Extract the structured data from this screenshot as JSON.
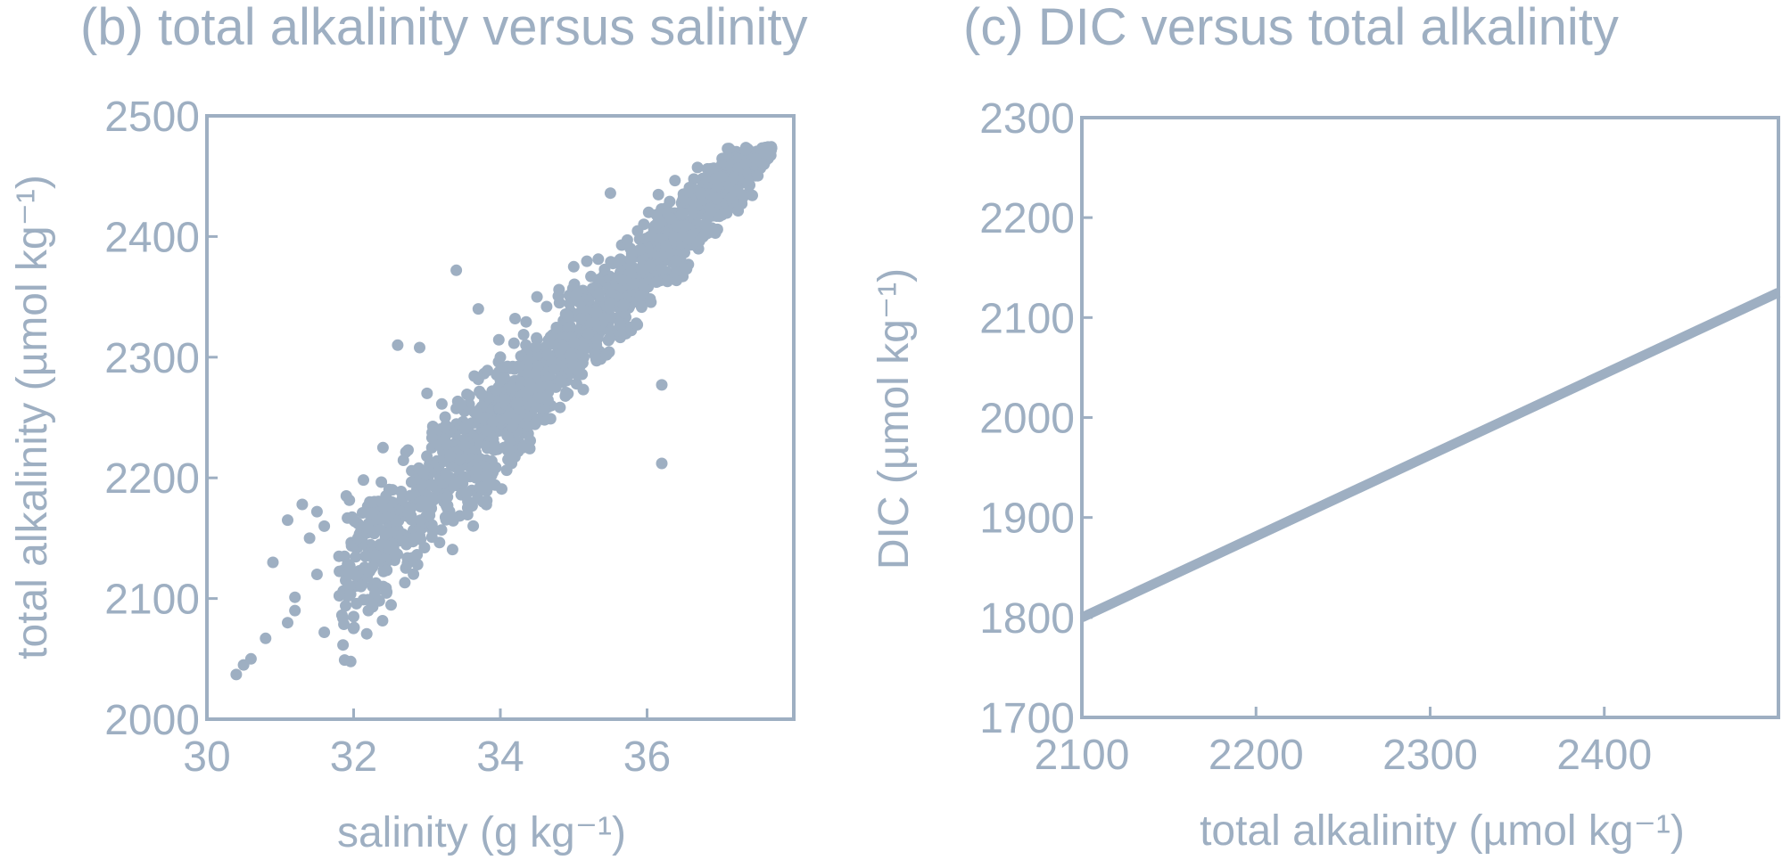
{
  "chart_data": [
    {
      "type": "scatter",
      "title": "(b) total alkalinity versus salinity",
      "xlabel": "salinity (g kg⁻¹)",
      "ylabel": "total alkalinity (µmol kg⁻¹)",
      "xlim": [
        30,
        38
      ],
      "ylim": [
        2000,
        2500
      ],
      "xticks": [
        30,
        32,
        34,
        36
      ],
      "yticks": [
        2000,
        2100,
        2200,
        2300,
        2400,
        2500
      ],
      "xtick_labels": [
        "30",
        "32",
        "34",
        "36"
      ],
      "ytick_labels": [
        "2000",
        "2100",
        "2200",
        "2300",
        "2400",
        "2500"
      ],
      "color": "#9eafc2",
      "grid": false,
      "band": {
        "x0": 31.8,
        "x1": 37.7,
        "slope": 64.3,
        "intercept": 61.5,
        "spread": 18
      },
      "extra_points": [
        [
          30.4,
          2037
        ],
        [
          30.5,
          2045
        ],
        [
          30.6,
          2050
        ],
        [
          30.8,
          2067
        ],
        [
          30.9,
          2130
        ],
        [
          31.1,
          2165
        ],
        [
          31.1,
          2080
        ],
        [
          31.2,
          2101
        ],
        [
          31.2,
          2090
        ],
        [
          31.3,
          2178
        ],
        [
          31.4,
          2150
        ],
        [
          31.5,
          2172
        ],
        [
          31.5,
          2120
        ],
        [
          31.6,
          2160
        ],
        [
          31.6,
          2072
        ],
        [
          31.8,
          2135
        ],
        [
          31.9,
          2185
        ],
        [
          32.0,
          2165
        ],
        [
          32.0,
          2085
        ],
        [
          32.1,
          2110
        ],
        [
          32.2,
          2090
        ],
        [
          32.3,
          2136
        ],
        [
          32.4,
          2225
        ],
        [
          32.6,
          2310
        ],
        [
          32.9,
          2308
        ],
        [
          33.0,
          2270
        ],
        [
          33.4,
          2372
        ],
        [
          33.7,
          2340
        ],
        [
          34.0,
          2300
        ],
        [
          34.2,
          2332
        ],
        [
          34.5,
          2350
        ],
        [
          34.8,
          2356
        ],
        [
          35.0,
          2375
        ],
        [
          35.5,
          2436
        ],
        [
          36.2,
          2277
        ],
        [
          36.2,
          2212
        ]
      ]
    },
    {
      "type": "line",
      "title": "(c) DIC versus total alkalinity",
      "xlabel": "total alkalinity (µmol kg⁻¹)",
      "ylabel": "DIC (µmol kg⁻¹)",
      "xlim": [
        2100,
        2500
      ],
      "ylim": [
        1700,
        2300
      ],
      "xticks": [
        2100,
        2200,
        2300,
        2400
      ],
      "yticks": [
        1700,
        1800,
        1900,
        2000,
        2100,
        2200,
        2300
      ],
      "xtick_labels": [
        "2100",
        "2200",
        "2300",
        "2400"
      ],
      "ytick_labels": [
        "1700",
        "1800",
        "1900",
        "2000",
        "2100",
        "2200",
        "2300"
      ],
      "color": "#9eafc2",
      "grid": false,
      "x": [
        2100,
        2500
      ],
      "y": [
        1800,
        2125
      ]
    }
  ]
}
